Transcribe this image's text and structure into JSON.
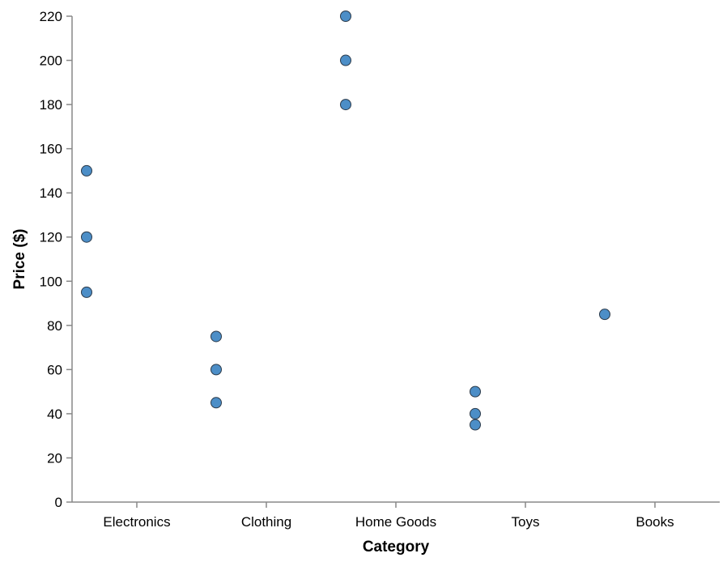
{
  "chart_data": {
    "type": "scatter",
    "xlabel": "Category",
    "ylabel": "Price ($)",
    "categories": [
      "Electronics",
      "Clothing",
      "Home Goods",
      "Toys",
      "Books"
    ],
    "ylim": [
      0,
      220
    ],
    "yticks": [
      0,
      20,
      40,
      60,
      80,
      100,
      120,
      140,
      160,
      180,
      200,
      220
    ],
    "grid": false,
    "point_color": "#4c8ec7",
    "point_stroke": "#2b3a4a",
    "points": [
      {
        "category": "Electronics",
        "y": 150
      },
      {
        "category": "Electronics",
        "y": 120
      },
      {
        "category": "Electronics",
        "y": 95
      },
      {
        "category": "Clothing",
        "y": 75
      },
      {
        "category": "Clothing",
        "y": 60
      },
      {
        "category": "Clothing",
        "y": 45
      },
      {
        "category": "Home Goods",
        "y": 220
      },
      {
        "category": "Home Goods",
        "y": 200
      },
      {
        "category": "Home Goods",
        "y": 180
      },
      {
        "category": "Toys",
        "y": 50
      },
      {
        "category": "Toys",
        "y": 40
      },
      {
        "category": "Toys",
        "y": 35
      },
      {
        "category": "Books",
        "y": 85
      }
    ]
  }
}
